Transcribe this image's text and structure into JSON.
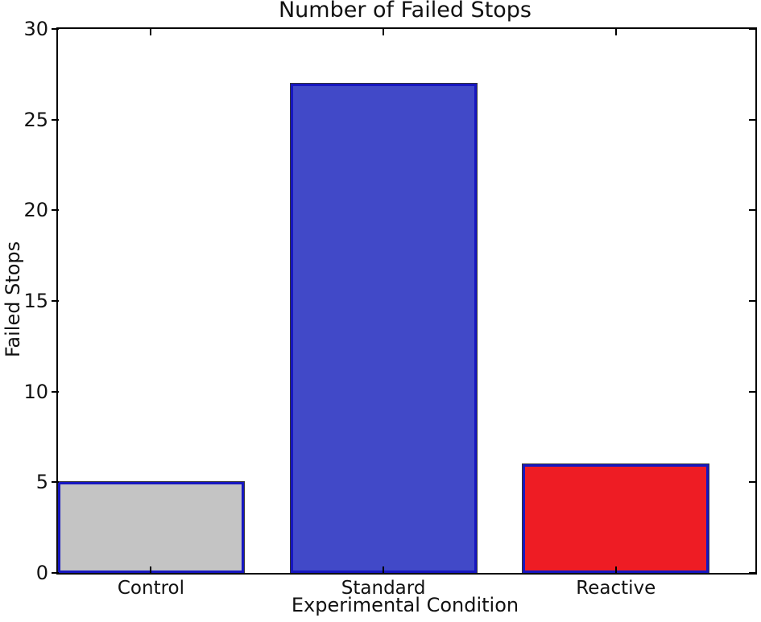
{
  "chart_data": {
    "type": "bar",
    "title": "Number of Failed Stops",
    "xlabel": "Experimental Condition",
    "ylabel": "Failed Stops",
    "categories": [
      "Control",
      "Standard",
      "Reactive"
    ],
    "values": [
      5,
      27,
      6
    ],
    "bar_colors": [
      "#c4c4c4",
      "#4149c8",
      "#ee1c24"
    ],
    "bar_edge_color": "#1717c0",
    "ylim": [
      0,
      30
    ],
    "yticks": [
      0,
      5,
      10,
      15,
      20,
      25,
      30
    ],
    "xlim": [
      0,
      3
    ],
    "bar_positions": [
      0,
      1,
      2
    ],
    "bar_width": 0.8,
    "grid": false,
    "legend": "none",
    "background_color": "#ffffff",
    "spine_color": "#000000",
    "text_color": "#111111"
  }
}
